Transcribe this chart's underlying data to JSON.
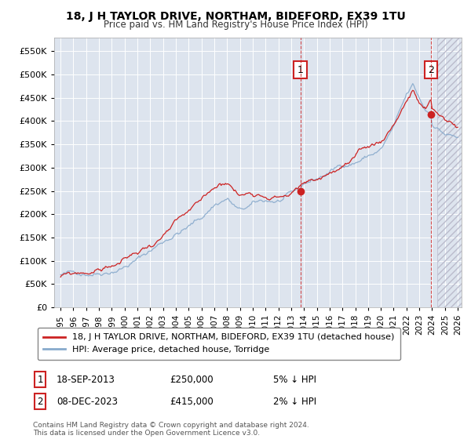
{
  "title": "18, J H TAYLOR DRIVE, NORTHAM, BIDEFORD, EX39 1TU",
  "subtitle": "Price paid vs. HM Land Registry's House Price Index (HPI)",
  "legend_label_red": "18, J H TAYLOR DRIVE, NORTHAM, BIDEFORD, EX39 1TU (detached house)",
  "legend_label_blue": "HPI: Average price, detached house, Torridge",
  "sale1_label": "1",
  "sale1_date": "18-SEP-2013",
  "sale1_price": "£250,000",
  "sale1_hpi": "5% ↓ HPI",
  "sale1_year": 2013.72,
  "sale2_label": "2",
  "sale2_date": "08-DEC-2023",
  "sale2_price": "£415,000",
  "sale2_hpi": "2% ↓ HPI",
  "sale2_year": 2023.92,
  "footer": "Contains HM Land Registry data © Crown copyright and database right 2024.\nThis data is licensed under the Open Government Licence v3.0.",
  "ylim_min": 0,
  "ylim_max": 580000,
  "yticks": [
    0,
    50000,
    100000,
    150000,
    200000,
    250000,
    300000,
    350000,
    400000,
    450000,
    500000,
    550000
  ],
  "plot_bg_color": "#dde4ee",
  "grid_color": "#ffffff",
  "red_color": "#cc2222",
  "blue_color": "#88aacc",
  "hatch_color": "#ccccdd"
}
